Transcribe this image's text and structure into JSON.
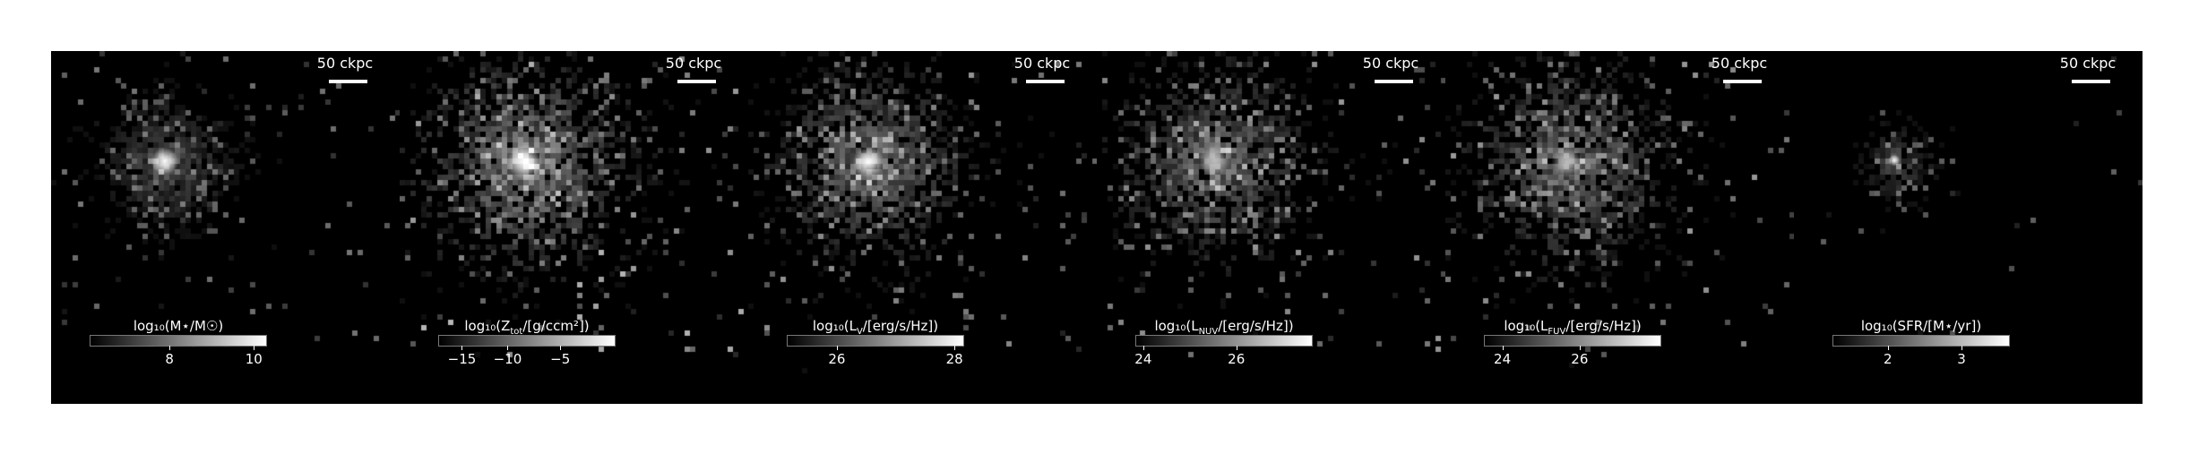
{
  "scale_bar_label": "50 ckpc",
  "panels": [
    {
      "id": "stellar-mass",
      "colorbar_title": "log₁₀(M⋆/M☉)",
      "ticks": [
        "8",
        "10"
      ],
      "tick_pos": [
        0.45,
        0.93
      ]
    },
    {
      "id": "metallicity",
      "colorbar_title": "log₁₀(Z_tot/[g/ccm²])",
      "ticks": [
        "−15",
        "−10",
        "−5"
      ],
      "tick_pos": [
        0.13,
        0.39,
        0.69
      ]
    },
    {
      "id": "v-band",
      "colorbar_title": "log₁₀(L_V/[erg/s/Hz])",
      "ticks": [
        "26",
        "28"
      ],
      "tick_pos": [
        0.28,
        0.95
      ]
    },
    {
      "id": "nuv",
      "colorbar_title": "log₁₀(L_NUV/[erg/s/Hz])",
      "ticks": [
        "24",
        "26"
      ],
      "tick_pos": [
        0.04,
        0.57
      ]
    },
    {
      "id": "fuv",
      "colorbar_title": "log₁₀(L_FUV/[erg/s/Hz])",
      "ticks": [
        "24",
        "26"
      ],
      "tick_pos": [
        0.1,
        0.54
      ]
    },
    {
      "id": "sfr",
      "colorbar_title": "log₁₀(SFR/[M⋆/yr])",
      "ticks": [
        "2",
        "3"
      ],
      "tick_pos": [
        0.31,
        0.73
      ]
    }
  ],
  "colors": {
    "background": "#000000",
    "figure": "#ffffff",
    "text": "#ffffff"
  }
}
